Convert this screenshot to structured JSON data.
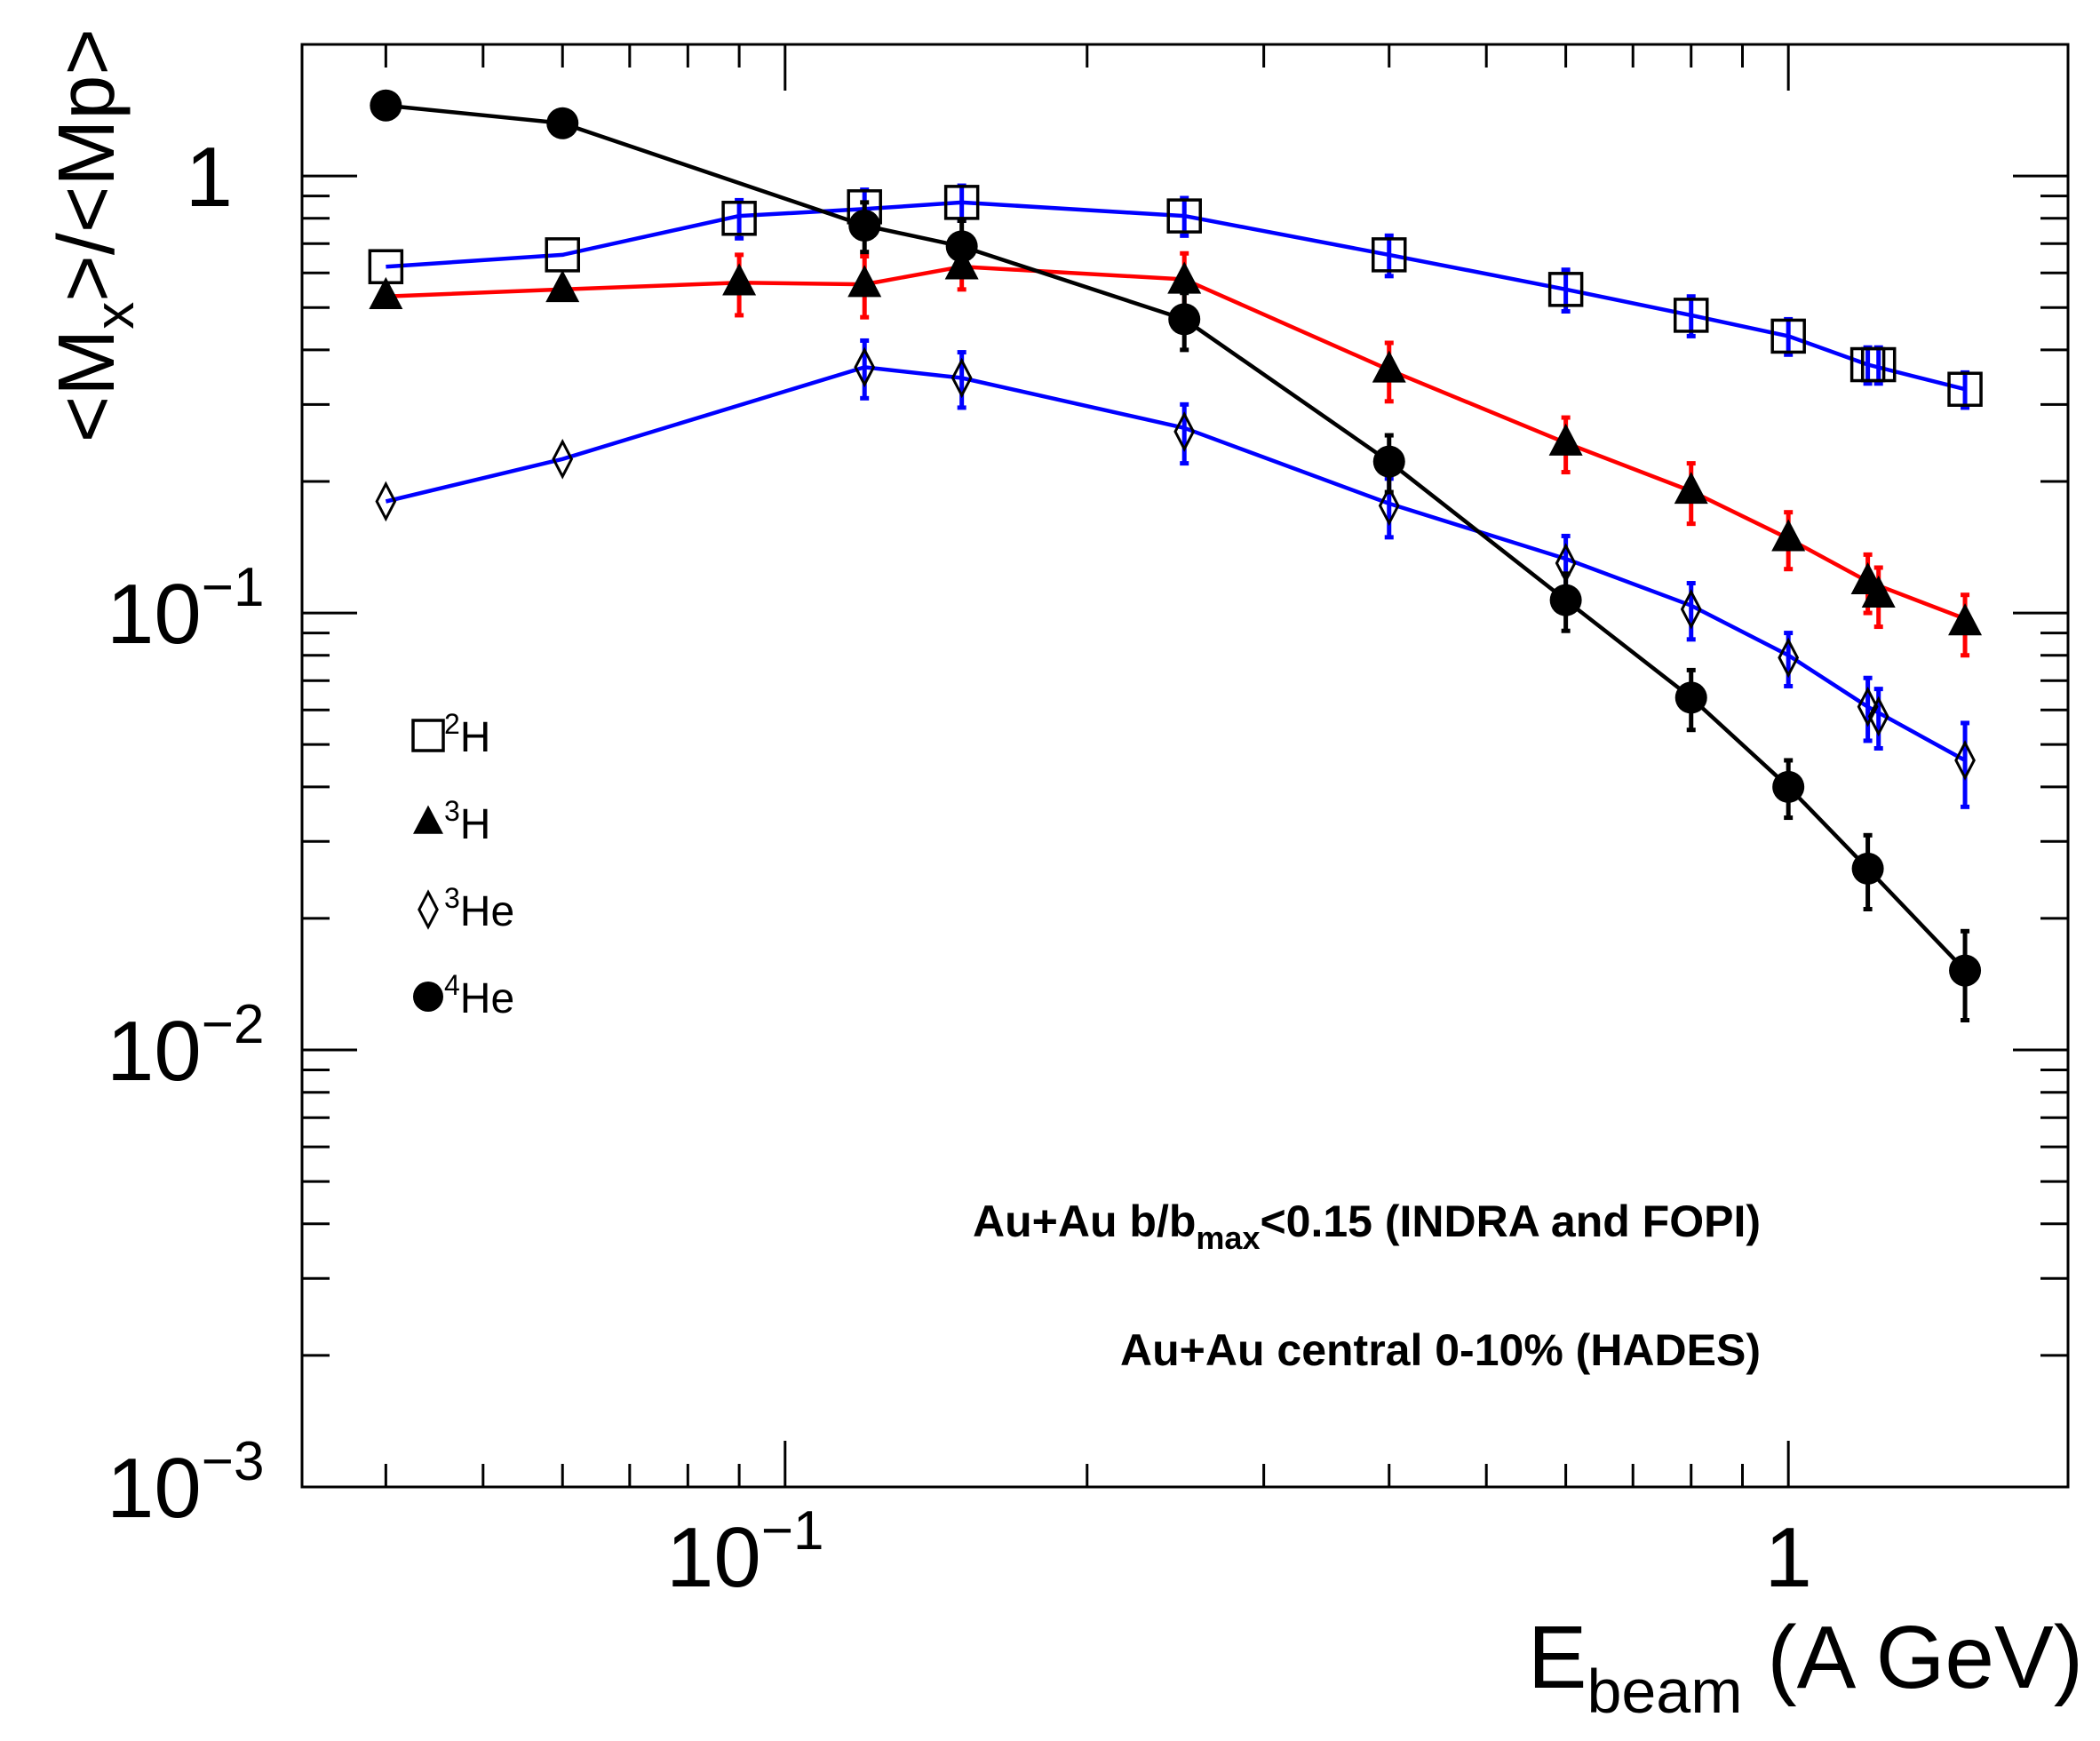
{
  "chart_data": {
    "type": "line",
    "xscale": "log",
    "yscale": "log",
    "xlim": [
      0.033,
      1.9
    ],
    "ylim": [
      0.001,
      2.0
    ],
    "xlabel": {
      "main": "E",
      "sub": "beam",
      "unit": " (A GeV)"
    },
    "ylabel": {
      "part1": "<M",
      "sub": "x",
      "part2": ">/<Mp>"
    },
    "x_tick_labels": [
      {
        "value": 0.1,
        "base": "10",
        "exp": "−1"
      },
      {
        "value": 1,
        "base": "1",
        "exp": ""
      }
    ],
    "y_tick_labels": [
      {
        "value": 1,
        "base": "1",
        "exp": ""
      },
      {
        "value": 0.1,
        "base": "10",
        "exp": "−1"
      },
      {
        "value": 0.01,
        "base": "10",
        "exp": "−2"
      },
      {
        "value": 0.001,
        "base": "10",
        "exp": "−3"
      }
    ],
    "annotations": {
      "line1": {
        "a": "Au+Au b/b",
        "sub": "max",
        "b": "<0.15 (INDRA and FOPI)"
      },
      "line2": "Au+Au central 0-10% (HADES)"
    },
    "series": [
      {
        "name": "2H",
        "legend_sup": "2",
        "legend_base": "H",
        "marker": "open-square",
        "line_color": "#0000ff",
        "err_color": "#0000ff",
        "points": [
          {
            "x": 0.04,
            "y": 0.62
          },
          {
            "x": 0.06,
            "y": 0.66
          },
          {
            "x": 0.09,
            "y": 0.8,
            "err": 0.08
          },
          {
            "x": 0.12,
            "y": 0.85,
            "err": 0.08
          },
          {
            "x": 0.15,
            "y": 0.87,
            "err": 0.08
          },
          {
            "x": 0.25,
            "y": 0.81,
            "err": 0.08
          },
          {
            "x": 0.4,
            "y": 0.66,
            "err": 0.07
          },
          {
            "x": 0.6,
            "y": 0.55,
            "err": 0.06
          },
          {
            "x": 0.8,
            "y": 0.48,
            "err": 0.05
          },
          {
            "x": 1.0,
            "y": 0.43,
            "err": 0.04
          },
          {
            "x": 1.2,
            "y": 0.37,
            "err": 0.035
          },
          {
            "x": 1.23,
            "y": 0.37,
            "err": 0.035
          },
          {
            "x": 1.5,
            "y": 0.325,
            "err": 0.03
          }
        ],
        "line_points": [
          {
            "x": 0.04,
            "y": 0.62
          },
          {
            "x": 0.06,
            "y": 0.66
          },
          {
            "x": 0.09,
            "y": 0.81
          },
          {
            "x": 0.12,
            "y": 0.84
          },
          {
            "x": 0.15,
            "y": 0.87
          },
          {
            "x": 0.25,
            "y": 0.81
          },
          {
            "x": 0.4,
            "y": 0.66
          },
          {
            "x": 0.6,
            "y": 0.55
          },
          {
            "x": 0.8,
            "y": 0.48
          },
          {
            "x": 1.0,
            "y": 0.43
          },
          {
            "x": 1.2,
            "y": 0.37
          },
          {
            "x": 1.5,
            "y": 0.325
          }
        ]
      },
      {
        "name": "3H",
        "legend_sup": "3",
        "legend_base": "H",
        "marker": "filled-triangle",
        "line_color": "#ff0000",
        "err_color": "#ff0000",
        "points": [
          {
            "x": 0.04,
            "y": 0.53
          },
          {
            "x": 0.06,
            "y": 0.55
          },
          {
            "x": 0.09,
            "y": 0.57,
            "err": 0.09
          },
          {
            "x": 0.12,
            "y": 0.565,
            "err": 0.09
          },
          {
            "x": 0.15,
            "y": 0.62,
            "err": 0.07
          },
          {
            "x": 0.25,
            "y": 0.575,
            "err": 0.09
          },
          {
            "x": 0.4,
            "y": 0.36,
            "err": 0.055
          },
          {
            "x": 0.6,
            "y": 0.245,
            "err": 0.035
          },
          {
            "x": 0.8,
            "y": 0.19,
            "err": 0.03
          },
          {
            "x": 1.0,
            "y": 0.148,
            "err": 0.022
          },
          {
            "x": 1.2,
            "y": 0.118,
            "err": 0.018
          },
          {
            "x": 1.23,
            "y": 0.11,
            "err": 0.017
          },
          {
            "x": 1.5,
            "y": 0.095,
            "err": 0.015
          }
        ],
        "line_points": [
          {
            "x": 0.04,
            "y": 0.53
          },
          {
            "x": 0.06,
            "y": 0.55
          },
          {
            "x": 0.09,
            "y": 0.57
          },
          {
            "x": 0.12,
            "y": 0.565
          },
          {
            "x": 0.15,
            "y": 0.62
          },
          {
            "x": 0.25,
            "y": 0.58
          },
          {
            "x": 0.4,
            "y": 0.36
          },
          {
            "x": 0.6,
            "y": 0.245
          },
          {
            "x": 0.8,
            "y": 0.19
          },
          {
            "x": 1.0,
            "y": 0.148
          },
          {
            "x": 1.2,
            "y": 0.118
          },
          {
            "x": 1.5,
            "y": 0.097
          }
        ]
      },
      {
        "name": "3He",
        "legend_sup": "3",
        "legend_base": "He",
        "marker": "open-diamond",
        "line_color": "#0000ff",
        "err_color": "#0000ff",
        "points": [
          {
            "x": 0.04,
            "y": 0.18
          },
          {
            "x": 0.06,
            "y": 0.225
          },
          {
            "x": 0.12,
            "y": 0.365,
            "err": 0.055
          },
          {
            "x": 0.15,
            "y": 0.345,
            "err": 0.05
          },
          {
            "x": 0.25,
            "y": 0.26,
            "err": 0.04
          },
          {
            "x": 0.4,
            "y": 0.176,
            "err": 0.027
          },
          {
            "x": 0.6,
            "y": 0.13,
            "err": 0.02
          },
          {
            "x": 0.8,
            "y": 0.102,
            "err": 0.015
          },
          {
            "x": 1.0,
            "y": 0.079,
            "err": 0.011
          },
          {
            "x": 1.2,
            "y": 0.061,
            "err": 0.01
          },
          {
            "x": 1.23,
            "y": 0.058,
            "err": 0.009
          },
          {
            "x": 1.5,
            "y": 0.046,
            "err": 0.01
          }
        ],
        "line_points": [
          {
            "x": 0.04,
            "y": 0.18
          },
          {
            "x": 0.06,
            "y": 0.225
          },
          {
            "x": 0.12,
            "y": 0.365
          },
          {
            "x": 0.15,
            "y": 0.345
          },
          {
            "x": 0.25,
            "y": 0.265
          },
          {
            "x": 0.4,
            "y": 0.178
          },
          {
            "x": 0.6,
            "y": 0.133
          },
          {
            "x": 0.8,
            "y": 0.104
          },
          {
            "x": 1.0,
            "y": 0.08
          },
          {
            "x": 1.2,
            "y": 0.061
          },
          {
            "x": 1.5,
            "y": 0.046
          }
        ]
      },
      {
        "name": "4He",
        "legend_sup": "4",
        "legend_base": "He",
        "marker": "filled-circle",
        "line_color": "#000000",
        "err_color": "#000000",
        "points": [
          {
            "x": 0.04,
            "y": 1.45
          },
          {
            "x": 0.06,
            "y": 1.32
          },
          {
            "x": 0.12,
            "y": 0.77,
            "err": 0.1
          },
          {
            "x": 0.15,
            "y": 0.69,
            "err": 0.1
          },
          {
            "x": 0.25,
            "y": 0.47,
            "err": 0.07
          },
          {
            "x": 0.4,
            "y": 0.222,
            "err": 0.033
          },
          {
            "x": 0.6,
            "y": 0.107,
            "err": 0.016
          },
          {
            "x": 0.8,
            "y": 0.064,
            "err": 0.01
          },
          {
            "x": 1.0,
            "y": 0.04,
            "err": 0.006
          },
          {
            "x": 1.2,
            "y": 0.026,
            "err": 0.005
          },
          {
            "x": 1.5,
            "y": 0.0152,
            "err": 0.0035
          }
        ],
        "line_points": [
          {
            "x": 0.04,
            "y": 1.45
          },
          {
            "x": 0.06,
            "y": 1.32
          },
          {
            "x": 0.12,
            "y": 0.77
          },
          {
            "x": 0.15,
            "y": 0.69
          },
          {
            "x": 0.25,
            "y": 0.47
          },
          {
            "x": 0.4,
            "y": 0.222
          },
          {
            "x": 0.6,
            "y": 0.107
          },
          {
            "x": 0.8,
            "y": 0.064
          },
          {
            "x": 1.0,
            "y": 0.04
          },
          {
            "x": 1.2,
            "y": 0.026
          },
          {
            "x": 1.5,
            "y": 0.0152
          }
        ]
      }
    ]
  }
}
